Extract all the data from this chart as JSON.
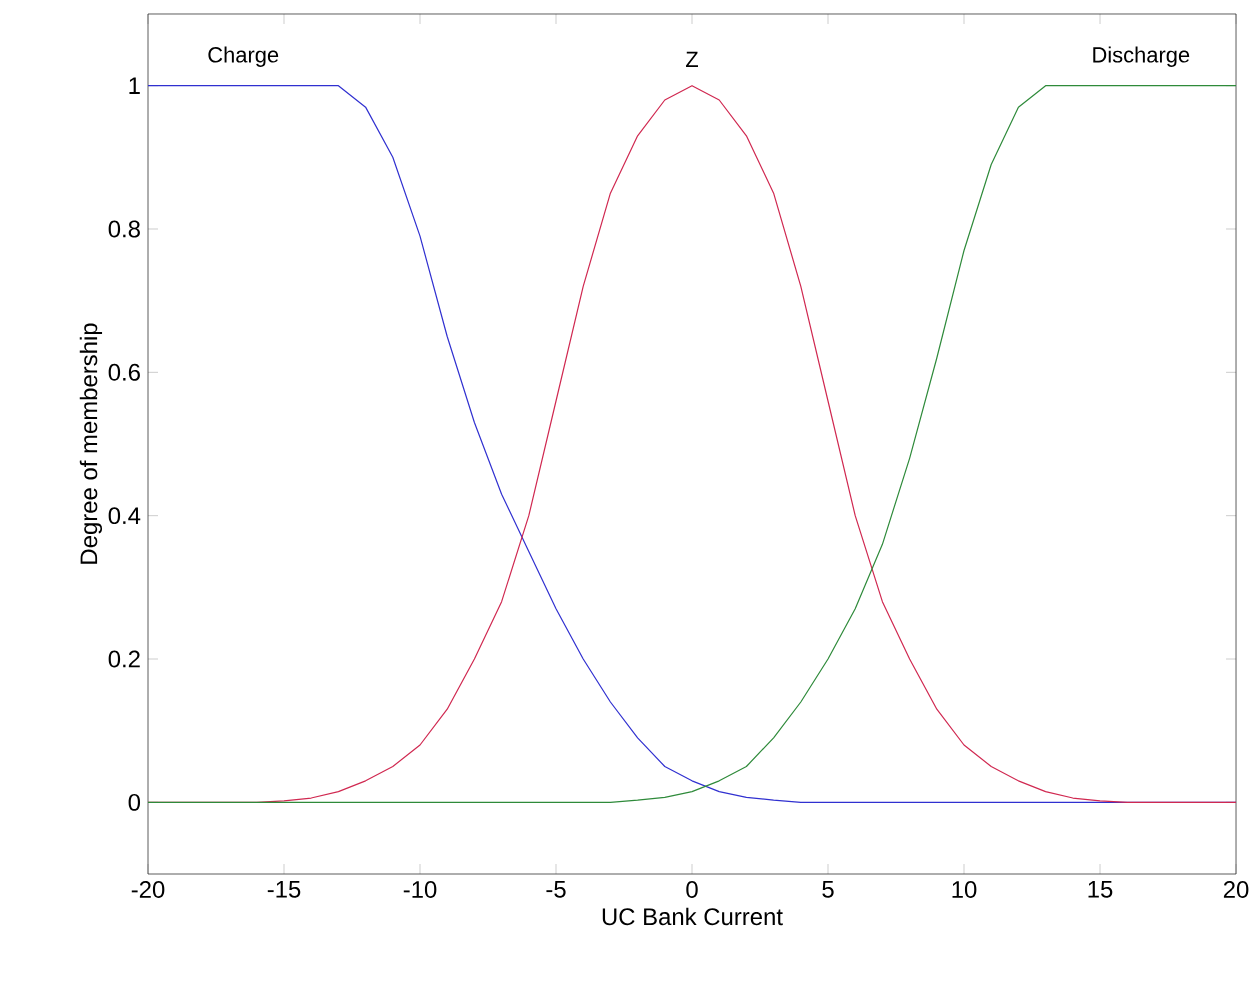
{
  "chart_data": {
    "type": "line",
    "xlabel": "UC Bank Current",
    "ylabel": "Degree of membership",
    "xlim": [
      -20,
      20
    ],
    "ylim": [
      -0.1,
      1.1
    ],
    "xticks": [
      -20,
      -15,
      -10,
      -5,
      0,
      5,
      10,
      15,
      20
    ],
    "yticks": [
      0,
      0.2,
      0.4,
      0.6,
      0.8,
      1
    ],
    "grid": false,
    "legend": false,
    "marker": "none",
    "line_style": "solid",
    "series": [
      {
        "name": "Charge",
        "color": "#3030d0",
        "x": [
          -20,
          -13,
          -12,
          -11,
          -10,
          -9,
          -8,
          -7,
          -6,
          -5,
          -4,
          -3,
          -2,
          -1,
          0,
          1,
          2,
          3,
          4,
          20
        ],
        "values": [
          1,
          1,
          0.97,
          0.9,
          0.79,
          0.65,
          0.53,
          0.43,
          0.35,
          0.27,
          0.2,
          0.14,
          0.09,
          0.05,
          0.03,
          0.015,
          0.007,
          0.003,
          0,
          0
        ]
      },
      {
        "name": "Z",
        "color": "#d02850",
        "x": [
          -20,
          -16,
          -15,
          -14,
          -13,
          -12,
          -11,
          -10,
          -9,
          -8,
          -7,
          -6,
          -5,
          -4,
          -3,
          -2,
          -1,
          0,
          1,
          2,
          3,
          4,
          5,
          6,
          7,
          8,
          9,
          10,
          11,
          12,
          13,
          14,
          15,
          16,
          20
        ],
        "values": [
          0,
          0,
          0.002,
          0.006,
          0.015,
          0.03,
          0.05,
          0.08,
          0.13,
          0.2,
          0.28,
          0.4,
          0.56,
          0.72,
          0.85,
          0.93,
          0.98,
          1,
          0.98,
          0.93,
          0.85,
          0.72,
          0.56,
          0.4,
          0.28,
          0.2,
          0.13,
          0.08,
          0.05,
          0.03,
          0.015,
          0.006,
          0.002,
          0,
          0
        ]
      },
      {
        "name": "Discharge",
        "color": "#2e8a3a",
        "x": [
          -20,
          -3,
          -2,
          -1,
          0,
          1,
          2,
          3,
          4,
          5,
          6,
          7,
          8,
          9,
          10,
          11,
          12,
          13,
          20
        ],
        "values": [
          0,
          0,
          0.003,
          0.007,
          0.015,
          0.03,
          0.05,
          0.09,
          0.14,
          0.2,
          0.27,
          0.36,
          0.48,
          0.62,
          0.77,
          0.89,
          0.97,
          1,
          1
        ]
      }
    ]
  }
}
